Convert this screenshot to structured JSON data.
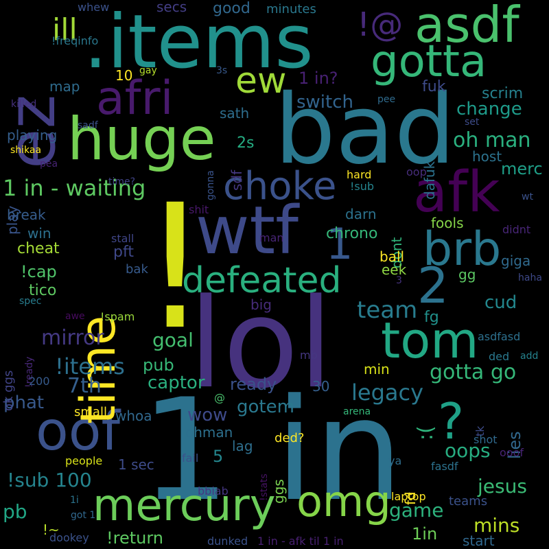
{
  "words": [
    {
      "text": "lol",
      "color": "#46327e"
    },
    {
      "text": "1 in",
      "color": "#2c728e"
    },
    {
      "text": "!",
      "color": "#d8e219"
    },
    {
      "text": "bad",
      "color": "#2a788e"
    },
    {
      "text": ".items",
      "color": "#21918c"
    },
    {
      "text": "ez",
      "color": "#433e85"
    },
    {
      "text": "huge",
      "color": "#75d054"
    },
    {
      "text": "wtf",
      "color": "#3e4a89"
    },
    {
      "text": "afk",
      "color": "#440154"
    },
    {
      "text": "asdf",
      "color": "#4ac16d"
    },
    {
      "text": "gotta",
      "color": "#35b779"
    },
    {
      "text": "tom",
      "color": "#22a884"
    },
    {
      "text": "oof",
      "color": "#3b528b"
    },
    {
      "text": "omg",
      "color": "#86d549"
    },
    {
      "text": "mercury",
      "color": "#6ccd5a"
    },
    {
      "text": "defeated",
      "color": "#2ab07f"
    },
    {
      "text": "choke",
      "color": "#3b528b"
    },
    {
      "text": "afri",
      "color": "#481a6c"
    },
    {
      "text": "time",
      "color": "#fde725"
    },
    {
      "text": "brb",
      "color": "#2a788e"
    },
    {
      "text": "?",
      "color": "#1fa187"
    },
    {
      "text": "2",
      "color": "#2c728e"
    },
    {
      "text": "1",
      "color": "#38588c"
    },
    {
      "text": "!@",
      "color": "#472a7a"
    },
    {
      "text": "ew",
      "color": "#a0da39"
    },
    {
      "text": "ill",
      "color": "#a2da37"
    },
    {
      "text": "1 in - waiting",
      "color": "#5ec962"
    },
    {
      "text": "mirror",
      "color": "#443983"
    },
    {
      "text": "team",
      "color": "#287c8e"
    },
    {
      "text": "legacy",
      "color": "#2a788e"
    },
    {
      "text": "!items",
      "color": "#2d708e"
    },
    {
      "text": "gotta go",
      "color": "#35b779"
    },
    {
      "text": "oh man",
      "color": "#2ab07f"
    },
    {
      "text": "switch",
      "color": "#32648e"
    },
    {
      "text": "7th",
      "color": "#355f8d"
    },
    {
      "text": "goal",
      "color": "#44bf70"
    },
    {
      "text": "pub",
      "color": "#37b878"
    },
    {
      "text": "captor",
      "color": "#2ab07f"
    },
    {
      "text": "ready",
      "color": "#3b528b"
    },
    {
      "text": "gotem",
      "color": "#2a788e"
    },
    {
      "text": "wow",
      "color": "#3e4a89"
    },
    {
      "text": ":(",
      "color": "#2fb47c"
    },
    {
      "text": "oops",
      "color": "#27ad81"
    },
    {
      "text": "jesus",
      "color": "#3bbb75"
    },
    {
      "text": "game",
      "color": "#2db27d"
    },
    {
      "text": "mins",
      "color": "#bddf26"
    },
    {
      "text": "!sub 100",
      "color": "#25848e"
    },
    {
      "text": "pb",
      "color": "#21a685"
    },
    {
      "text": "phat",
      "color": "#38598c"
    },
    {
      "text": "cud",
      "color": "#23888e"
    },
    {
      "text": "fg",
      "color": "#21918c"
    },
    {
      "text": "change",
      "color": "#1e9b8a"
    },
    {
      "text": "merc",
      "color": "#1f9f88"
    },
    {
      "text": "scrim",
      "color": "#26818e"
    },
    {
      "text": "host",
      "color": "#2c728e"
    },
    {
      "text": "lies",
      "color": "#31688e"
    },
    {
      "text": "!return",
      "color": "#5ec962"
    },
    {
      "text": "1in",
      "color": "#6ece58"
    },
    {
      "text": "fuk",
      "color": "#3e4c8a"
    },
    {
      "text": "1 in?",
      "color": "#482173"
    },
    {
      "text": "good",
      "color": "#31688e"
    },
    {
      "text": "minutes",
      "color": "#2a788e"
    },
    {
      "text": "secs",
      "color": "#433e85"
    },
    {
      "text": "whew",
      "color": "#3b528b"
    },
    {
      "text": "!freqinfo",
      "color": "#2a788e"
    },
    {
      "text": "10",
      "color": "#fde725"
    },
    {
      "text": "gay",
      "color": "#b5de2b"
    },
    {
      "text": "map",
      "color": "#2f6c8e"
    },
    {
      "text": "3s",
      "color": "#38598c"
    },
    {
      "text": "killed",
      "color": "#46307e"
    },
    {
      "text": "sath",
      "color": "#2e6e8e"
    },
    {
      "text": "pee",
      "color": "#2f6b8e"
    },
    {
      "text": "playing",
      "color": "#355e8d"
    },
    {
      "text": "sadf",
      "color": "#3b528b"
    },
    {
      "text": "set",
      "color": "#3e4c8a"
    },
    {
      "text": "2s",
      "color": "#25ac82"
    },
    {
      "text": "dafuk",
      "color": "#2c728e"
    },
    {
      "text": "sdf",
      "color": "#453882"
    },
    {
      "text": "gonna",
      "color": "#3a548c"
    },
    {
      "text": "shikaa",
      "color": "#fde725"
    },
    {
      "text": "pea",
      "color": "#482475"
    },
    {
      "text": "play",
      "color": "#39558c"
    },
    {
      "text": "hard",
      "color": "#fde725"
    },
    {
      "text": "oop",
      "color": "#472d7b"
    },
    {
      "text": "time?",
      "color": "#414487"
    },
    {
      "text": "!sub",
      "color": "#25848e"
    },
    {
      "text": "break",
      "color": "#365d8d"
    },
    {
      "text": "shit",
      "color": "#48186a"
    },
    {
      "text": "darn",
      "color": "#2c728e"
    },
    {
      "text": "wt",
      "color": "#3b528b"
    },
    {
      "text": "dont",
      "color": "#31b57b"
    },
    {
      "text": "win",
      "color": "#2d708e"
    },
    {
      "text": "chrono",
      "color": "#35b779"
    },
    {
      "text": "fools",
      "color": "#86d549"
    },
    {
      "text": "didnt",
      "color": "#482677"
    },
    {
      "text": "cheat",
      "color": "#a5db36"
    },
    {
      "text": "stall",
      "color": "#404688"
    },
    {
      "text": "man",
      "color": "#482576"
    },
    {
      "text": "ball",
      "color": "#fde725"
    },
    {
      "text": "pft",
      "color": "#3f4889"
    },
    {
      "text": "giga",
      "color": "#306a8e"
    },
    {
      "text": "!cap",
      "color": "#50c46a"
    },
    {
      "text": "bak",
      "color": "#375b8d"
    },
    {
      "text": "eek",
      "color": "#8fd744"
    },
    {
      "text": "gg",
      "color": "#5cc863"
    },
    {
      "text": "haha",
      "color": "#3e4989"
    },
    {
      "text": "3",
      "color": "#46327e"
    },
    {
      "text": "tico",
      "color": "#5ec962"
    },
    {
      "text": "spec",
      "color": "#287d8e"
    },
    {
      "text": "big",
      "color": "#472c7a"
    },
    {
      "text": "awe",
      "color": "#460b5e"
    },
    {
      "text": "!spam",
      "color": "#9bd93c"
    },
    {
      "text": "!ready",
      "color": "#482878"
    },
    {
      "text": "ok ggs",
      "color": "#414487"
    },
    {
      "text": "asdfasd",
      "color": "#2d708e"
    },
    {
      "text": "mb",
      "color": "#453781"
    },
    {
      "text": "ded",
      "color": "#2a788e"
    },
    {
      "text": "add",
      "color": "#25838e"
    },
    {
      "text": "min",
      "color": "#d8e219"
    },
    {
      "text": "200",
      "color": "#375b8d"
    },
    {
      "text": "30",
      "color": "#355f8d"
    },
    {
      "text": "whoa",
      "color": "#31688e"
    },
    {
      "text": "@",
      "color": "#4ac16d"
    },
    {
      "text": "small",
      "color": "#fde725"
    },
    {
      "text": "arena",
      "color": "#35b779"
    },
    {
      "text": "tk",
      "color": "#3e4c8a"
    },
    {
      "text": "ohman",
      "color": "#2d708e"
    },
    {
      "text": "shot",
      "color": "#306a8e"
    },
    {
      "text": "lag",
      "color": "#2e6f8e"
    },
    {
      "text": "ded?",
      "color": "#fde725"
    },
    {
      "text": "5",
      "color": "#24868e"
    },
    {
      "text": "ggs",
      "color": "#7ad151"
    },
    {
      "text": "people",
      "color": "#d8e219"
    },
    {
      "text": "1 sec",
      "color": "#3e4c8a"
    },
    {
      "text": "fail",
      "color": "#3b528b"
    },
    {
      "text": "!stats",
      "color": "#471365"
    },
    {
      "text": "ya",
      "color": "#2e6e8e"
    },
    {
      "text": "ooof",
      "color": "#482475"
    },
    {
      "text": "fasdf",
      "color": "#2c728e"
    },
    {
      "text": "fd",
      "color": "#fde725"
    },
    {
      "text": "bbiab",
      "color": "#453781"
    },
    {
      "text": "laptop",
      "color": "#fde725"
    },
    {
      "text": "1i",
      "color": "#2b748e"
    },
    {
      "text": "got 1",
      "color": "#31688e"
    },
    {
      "text": "teams",
      "color": "#3b528b"
    },
    {
      "text": "!~",
      "color": "#b8de29"
    },
    {
      "text": "dookey",
      "color": "#3b528b"
    },
    {
      "text": "dunked",
      "color": "#3b528b"
    },
    {
      "text": "1 in - afk til 1 in",
      "color": "#482071"
    },
    {
      "text": "start",
      "color": "#31688e"
    }
  ]
}
